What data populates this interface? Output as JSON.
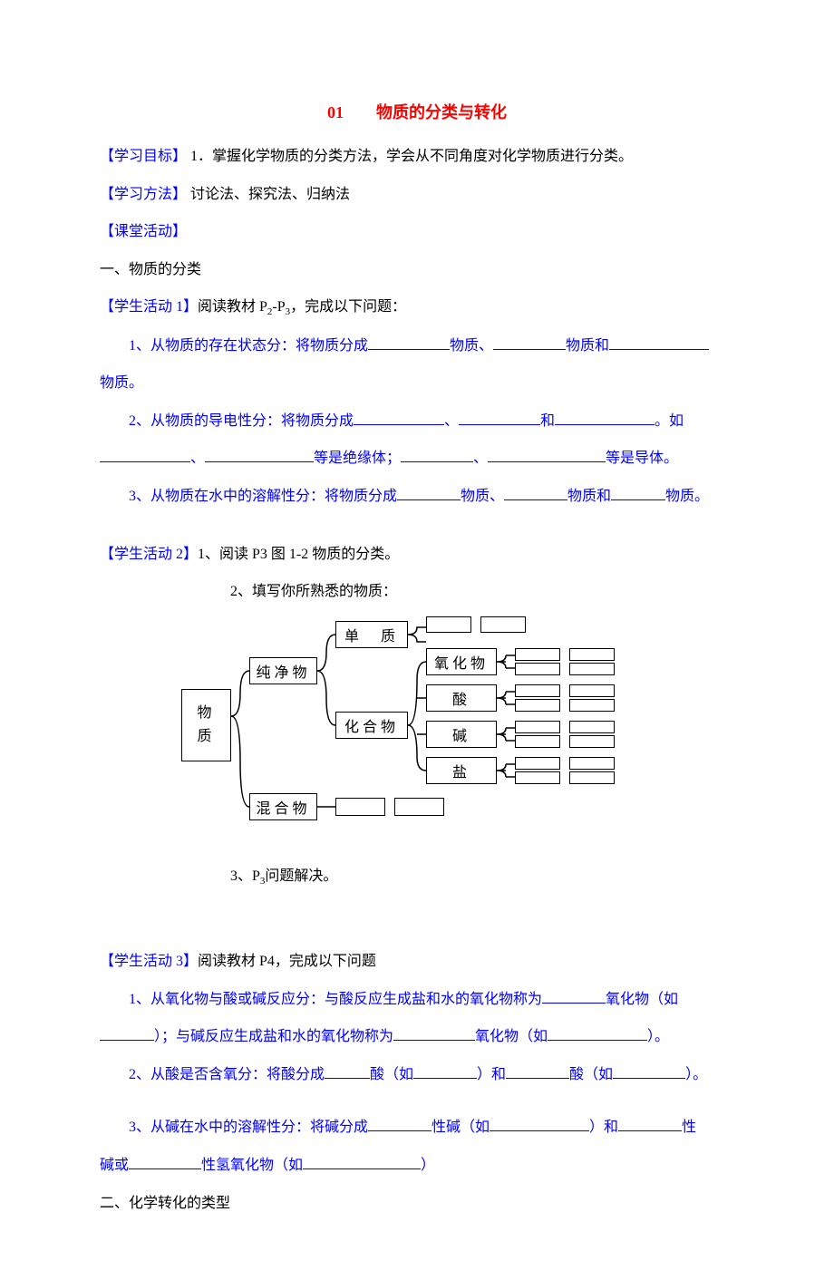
{
  "title": "01　　物质的分类与转化",
  "goal_label": "【学习目标】",
  "goal_text": " 1．掌握化学物质的分类方法，学会从不同角度对化学物质进行分类。",
  "method_label": "【学习方法】",
  "method_text": " 讨论法、探究法、归纳法",
  "classroom_label": "【课堂活动】",
  "section1_heading": "一、物质的分类",
  "act1_label": "【学生活动 1】",
  "act1_text": "阅读教材 P",
  "act1_sub1": "2",
  "act1_mid": "-P",
  "act1_sub2": "3",
  "act1_tail": "，完成以下问题：",
  "q1_1a": "1、从物质的存在状态分：将物质分成",
  "q1_1b": "物质、",
  "q1_1c": "物质和",
  "q1_2": "物质。",
  "q1_3a": "2、从物质的导电性分：将物质分成",
  "q1_3b": "、",
  "q1_3c": "和",
  "q1_3d": "。如",
  "q1_4a": "、",
  "q1_4b": "等是绝缘体；",
  "q1_4c": "、",
  "q1_4d": "等是导体。",
  "q1_5a": "3、从物质在水中的溶解性分：将物质分成",
  "q1_5b": "物质、",
  "q1_5c": "物质和",
  "q1_5d": "物质。",
  "act2_label": "【学生活动 2】",
  "act2_1a": "1、阅读 P3 图 1-2 物质的分类。",
  "act2_2": "2、填写你所熟悉的物质：",
  "diagram": {
    "boxes": {
      "wuzhi": "物\n质",
      "chunjingwu": "纯净物",
      "hunhewu": "混合物",
      "danzhi": "单　质",
      "huahewu": "化合物",
      "yanghuawu": "氧化物",
      "suan": "酸",
      "jian": "碱",
      "yan": "盐"
    }
  },
  "act2_3a": "3、P",
  "act2_3sub": "3",
  "act2_3b": "问题解决。",
  "act3_label": "【学生活动 3】",
  "act3_text": "阅读教材 P4，完成以下问题",
  "q3_1a": "1、从氧化物与酸或碱反应分：与酸反应生成盐和水的氧化物称为",
  "q3_1b": "氧化物（如",
  "q3_2a": "）；与碱反应生成盐和水的氧化物称为",
  "q3_2b": "氧化物（如",
  "q3_2c": "）。",
  "q3_3a": "2、从酸是否含氧分：将酸分成",
  "q3_3b": "酸（如",
  "q3_3c": "）和",
  "q3_3d": "酸（如",
  "q3_3e": "）。",
  "q3_4a": "3、从碱在水中的溶解性分：将碱分成",
  "q3_4b": "性碱（如",
  "q3_4c": "）和",
  "q3_4d": "性",
  "q3_5a": "碱或",
  "q3_5b": "性氢氧化物（如",
  "q3_5c": "）",
  "section2_heading": "二、化学转化的类型",
  "blanks": {
    "w90": 90,
    "w80": 80,
    "w110": 110,
    "w100": 100,
    "w70": 70,
    "w60": 60,
    "w120": 120,
    "w50": 50,
    "w130": 130
  },
  "colors": {
    "title": "#ff0000",
    "label": "#0000ff",
    "body": "#000000",
    "question": "#0000ff"
  }
}
